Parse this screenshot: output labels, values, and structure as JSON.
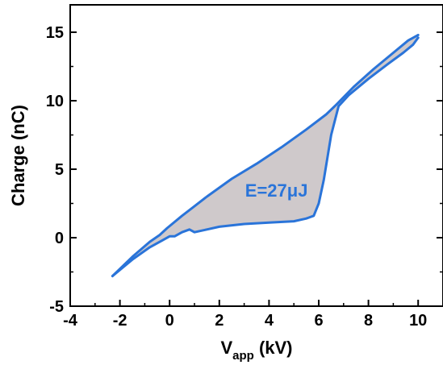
{
  "chart_data": {
    "type": "line",
    "title": "",
    "xlabel": {
      "main": "V",
      "sub": "app",
      "unit": " (kV)"
    },
    "ylabel": "Charge (nC)",
    "xlim": [
      -4,
      11
    ],
    "ylim": [
      -5,
      17
    ],
    "xticks": [
      -4,
      -2,
      0,
      2,
      4,
      6,
      8,
      10
    ],
    "yticks": [
      -5,
      0,
      5,
      10,
      15
    ],
    "xtick_labels": [
      "-4",
      "-2",
      "0",
      "2",
      "4",
      "6",
      "8",
      "10"
    ],
    "ytick_labels": [
      "-5",
      "0",
      "5",
      "10",
      "15"
    ],
    "grid": false,
    "colors": {
      "line": "#2a74d9",
      "fill": "#cfc9cb",
      "axis": "#000000"
    },
    "series": [
      {
        "x": [
          -2.3,
          -1.5,
          -0.8,
          -0.3,
          0.0,
          0.2,
          0.5,
          0.8,
          1.0,
          1.5,
          2.0,
          3.0,
          4.0,
          5.0,
          5.5,
          5.8,
          6.0,
          6.2,
          6.5,
          6.8,
          7.2,
          8.0,
          8.8,
          9.4,
          9.8,
          10.0
        ],
        "y": [
          -2.8,
          -1.6,
          -0.7,
          -0.2,
          0.1,
          0.1,
          0.4,
          0.6,
          0.4,
          0.6,
          0.8,
          1.0,
          1.1,
          1.2,
          1.4,
          1.6,
          2.5,
          4.2,
          7.5,
          9.6,
          10.4,
          11.6,
          12.7,
          13.5,
          14.1,
          14.6
        ]
      },
      {
        "x": [
          10.0,
          9.6,
          9.0,
          8.2,
          7.4,
          6.7,
          6.3,
          5.5,
          4.5,
          3.5,
          2.5,
          1.5,
          1.0,
          0.5,
          -0.1,
          -0.4,
          -0.8,
          -1.5,
          -2.3
        ],
        "y": [
          14.8,
          14.4,
          13.5,
          12.3,
          11.0,
          9.7,
          9.0,
          7.9,
          6.6,
          5.4,
          4.3,
          3.0,
          2.3,
          1.6,
          0.7,
          0.2,
          -0.3,
          -1.4,
          -2.8
        ]
      }
    ],
    "annotations": [
      {
        "text": "E=27μJ",
        "x": 4.3,
        "y": 3.0
      }
    ]
  }
}
